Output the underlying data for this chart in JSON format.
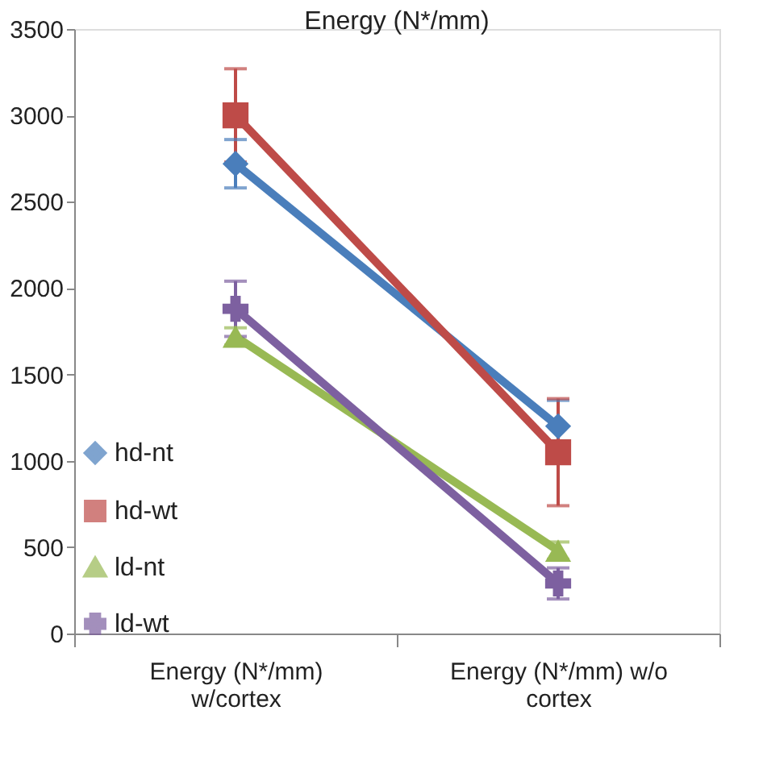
{
  "chart_data": {
    "type": "line",
    "title": "Energy (N*/mm)",
    "categories": [
      "Energy (N*/mm)\nw/cortex",
      "Energy (N*/mm) w/o\ncortex"
    ],
    "series": [
      {
        "name": "hd-nt",
        "color": "#4a7ebb",
        "marker": "diamond",
        "values": [
          2720,
          1200
        ],
        "errors": [
          140,
          150
        ]
      },
      {
        "name": "hd-wt",
        "color": "#be4b48",
        "marker": "square",
        "values": [
          3000,
          1050
        ],
        "errors": [
          270,
          310
        ]
      },
      {
        "name": "ld-nt",
        "color": "#98b954",
        "marker": "triangle",
        "values": [
          1720,
          480
        ],
        "errors": [
          50,
          50
        ]
      },
      {
        "name": "ld-wt",
        "color": "#7d60a0",
        "marker": "cross",
        "values": [
          1880,
          290
        ],
        "errors": [
          160,
          90
        ]
      }
    ],
    "ylim": [
      0,
      3500
    ],
    "yticks": [
      0,
      500,
      {
        "value": 1000,
        "label": "1000"
      },
      {
        "value": 1500,
        "label": "1500"
      },
      {
        "value": 2000,
        "label": "2000"
      },
      {
        "value": 2500,
        "label": "2500"
      },
      {
        "value": 3000,
        "label": "3000"
      },
      {
        "value": 3500,
        "label": "3500"
      }
    ],
    "grid": false,
    "legend": "left",
    "line_style": "solid"
  }
}
